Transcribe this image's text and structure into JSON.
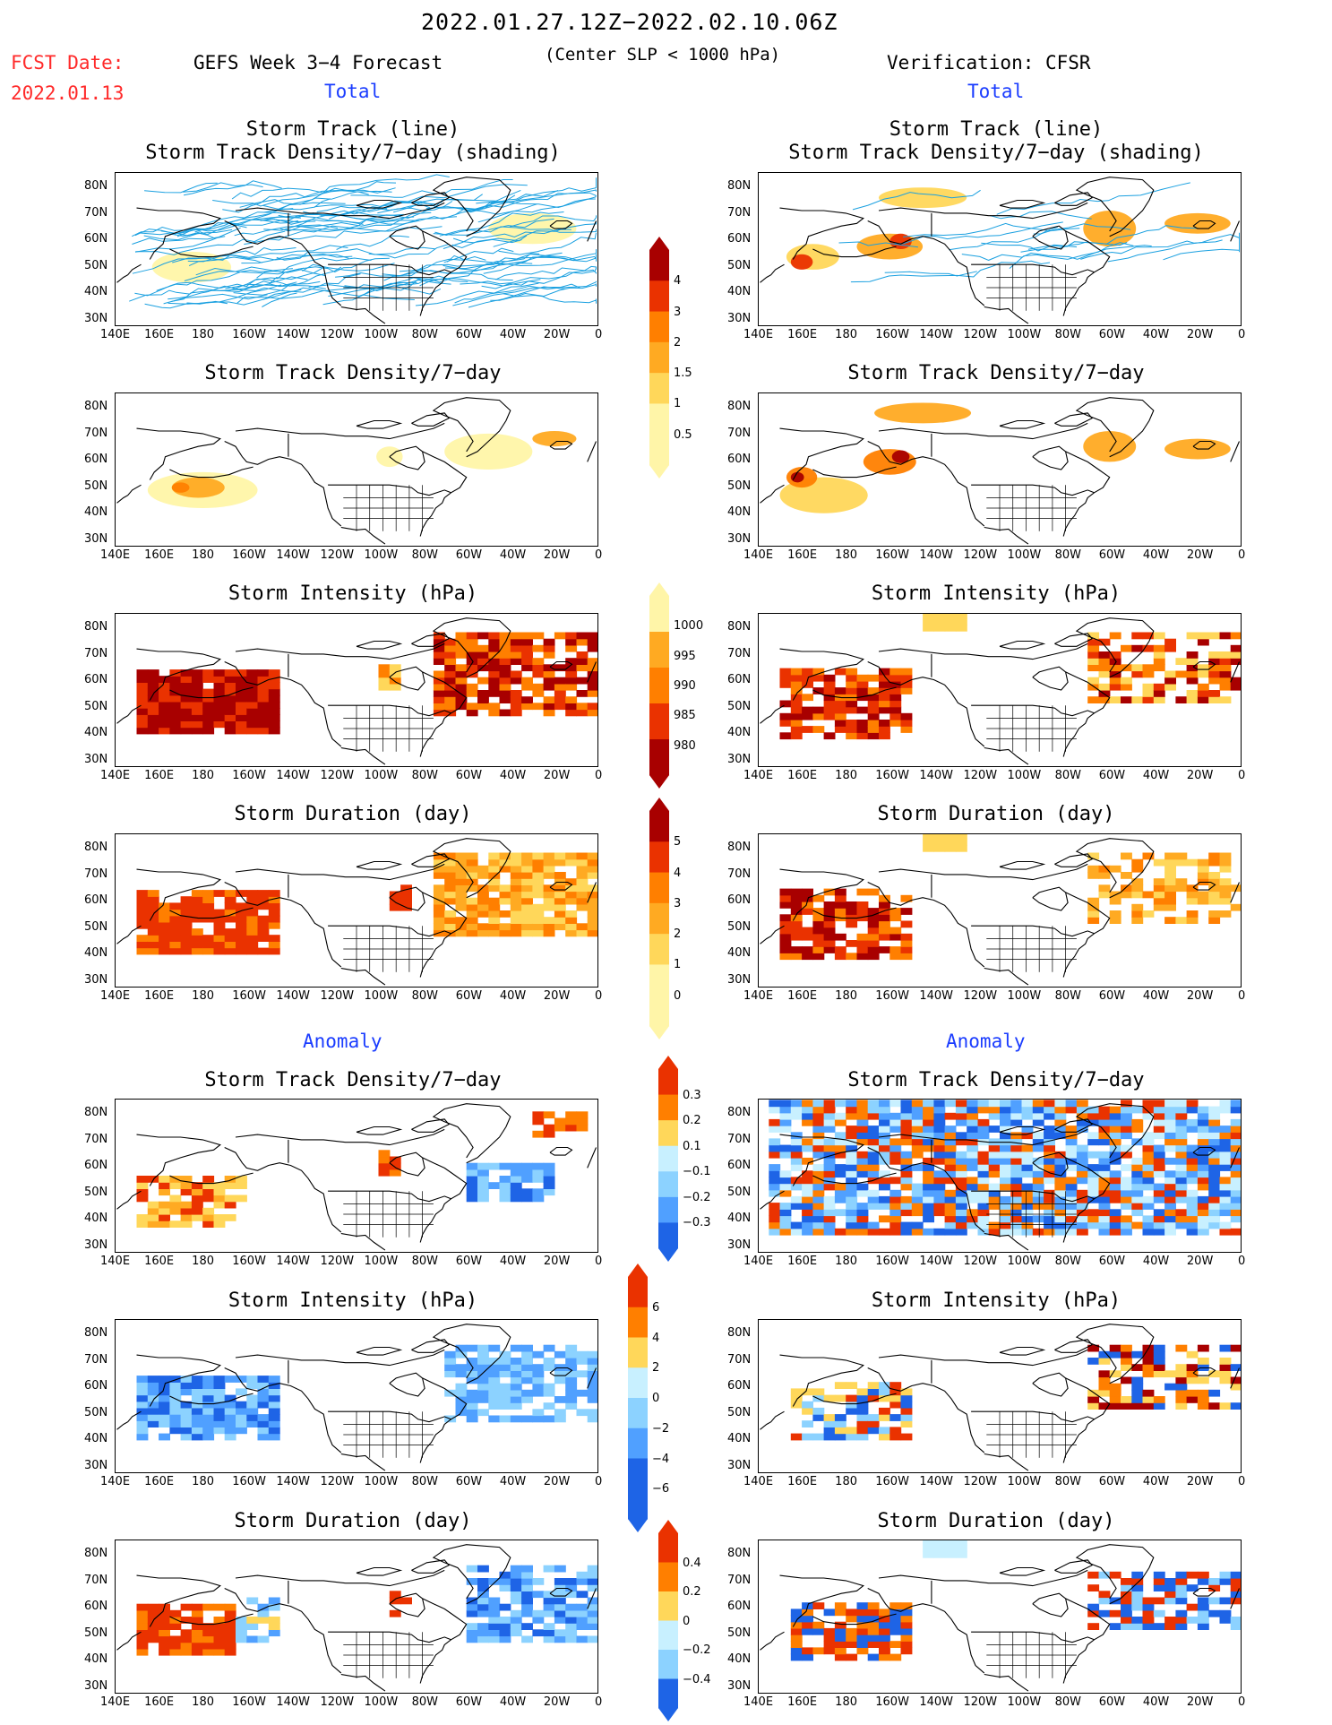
{
  "header": {
    "date_range": "2022.01.27.12Z−2022.02.10.06Z",
    "fcst_label": "FCST Date:",
    "fcst_date": "2022.01.13",
    "left_title": "GEFS Week 3−4 Forecast",
    "center_note": "(Center SLP < 1000 hPa)",
    "right_title": "Verification: CFSR"
  },
  "sections": {
    "total_label": "Total",
    "anomaly_label": "Anomaly"
  },
  "panel_titles": {
    "track_line": "Storm Track (line)",
    "track_density_shading": "Storm Track Density/7−day (shading)",
    "track_density": "Storm Track Density/7−day",
    "intensity": "Storm Intensity (hPa)",
    "duration": "Storm Duration (day)"
  },
  "axes": {
    "lat_labels": [
      "80N",
      "70N",
      "60N",
      "50N",
      "40N",
      "30N"
    ],
    "lon_labels": [
      "140E",
      "160E",
      "180",
      "160W",
      "140W",
      "120W",
      "100W",
      "80W",
      "60W",
      "40W",
      "20W",
      "0"
    ]
  },
  "colorbars": {
    "density": [
      "4",
      "3",
      "2",
      "1.5",
      "1",
      "0.5"
    ],
    "intensity": [
      "1000",
      "995",
      "990",
      "985",
      "980"
    ],
    "duration": [
      "5",
      "4",
      "3",
      "2",
      "1",
      "0"
    ],
    "density_anom": [
      "0.3",
      "0.2",
      "0.1",
      "−0.1",
      "−0.2",
      "−0.3"
    ],
    "intensity_anom": [
      "6",
      "4",
      "2",
      "0",
      "−2",
      "−4",
      "−6"
    ],
    "duration_anom": [
      "0.4",
      "0.2",
      "0",
      "−0.2",
      "−0.4"
    ]
  },
  "colors": {
    "yellow_light": "#fff5a8",
    "yellow": "#ffd75a",
    "orange_light": "#ffaa22",
    "orange": "#ff7f00",
    "red": "#ea3200",
    "dark_red": "#a80000",
    "cyan_light": "#c8f0ff",
    "cyan": "#8cd2ff",
    "blue_light": "#50a0ff",
    "blue": "#1e64e6",
    "track_line": "#1aa0e0",
    "title_red": "#ff2a2a",
    "title_blue": "#1a3cff"
  }
}
